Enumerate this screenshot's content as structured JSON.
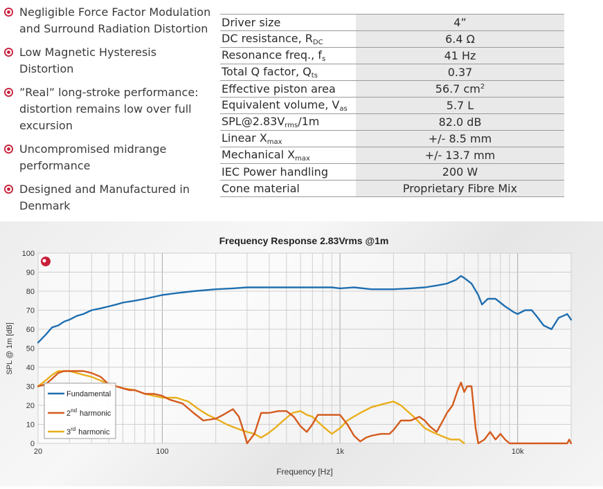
{
  "features": [
    "Negligible Force Factor Modulation and Surround Radiation Distortion",
    "Low Magnetic Hysteresis Distortion",
    "”Real” long-stroke performance: distortion remains low over full excursion",
    "Uncompromised midrange performance",
    "Designed and Manufactured in Denmark"
  ],
  "specs": {
    "r0": {
      "label": "Driver size",
      "value": "4”"
    },
    "r1": {
      "label": "DC resistance, R",
      "sub": "DC",
      "value": "6.4 Ω"
    },
    "r2": {
      "label": "Resonance freq., f",
      "sub": "s",
      "value": "41 Hz"
    },
    "r3": {
      "label": "Total Q factor, Q",
      "sub": "ts",
      "value": "0.37"
    },
    "r4": {
      "label": "Effective piston area",
      "value": "56.7 cm",
      "value_sup": "2"
    },
    "r5": {
      "label": "Equivalent volume, V",
      "sub": "as",
      "value": "5.7 L"
    },
    "r6": {
      "label": "SPL@2.83V",
      "sub": "rms",
      "label_tail": "/1m",
      "value": "82.0 dB"
    },
    "r7": {
      "label": "Linear X",
      "sub": "max",
      "value": "+/- 8.5 mm"
    },
    "r8": {
      "label": "Mechanical X",
      "sub": "max",
      "value": "+/- 13.7 mm"
    },
    "r9": {
      "label": "IEC Power handling",
      "value": "200 W"
    },
    "r10": {
      "label": "Cone material",
      "value": "Proprietary Fibre Mix"
    }
  },
  "colors": {
    "fundamental": "#1f6fb0",
    "h2": "#d45a1c",
    "h3": "#e9ae1c",
    "bullet": "#c81f3a",
    "grid": "#cfcfcf"
  },
  "chart_data": {
    "type": "line",
    "title": "Frequency Response 2.83Vrms @1m",
    "xlabel": "Frequency [Hz]",
    "ylabel": "SPL @ 1m [dB]",
    "xscale": "log",
    "xlim": [
      20,
      20000
    ],
    "ylim": [
      0,
      100
    ],
    "x_ticks": [
      "20",
      "100",
      "1k",
      "10k"
    ],
    "y_ticks": [
      "0",
      "10",
      "20",
      "30",
      "40",
      "50",
      "60",
      "70",
      "80",
      "90",
      "100"
    ],
    "legend": {
      "placement": "bottom-left",
      "labels": {
        "fundamental": "Fundamental",
        "h2_num": "2",
        "h2_sup": "nd",
        "h2_word": "harmonic",
        "h3_num": "3",
        "h3_sup": "rd",
        "h3_word": "harmonic"
      }
    },
    "grid": true,
    "series": [
      {
        "name": "Fundamental",
        "color": "#1f6fb0",
        "points": [
          [
            20,
            53
          ],
          [
            22,
            57
          ],
          [
            24,
            61
          ],
          [
            26,
            62
          ],
          [
            28,
            64
          ],
          [
            30,
            65
          ],
          [
            33,
            67
          ],
          [
            36,
            68
          ],
          [
            40,
            70
          ],
          [
            45,
            71
          ],
          [
            50,
            72
          ],
          [
            55,
            73
          ],
          [
            60,
            74
          ],
          [
            70,
            75
          ],
          [
            80,
            76
          ],
          [
            100,
            78
          ],
          [
            120,
            79
          ],
          [
            150,
            80
          ],
          [
            200,
            81
          ],
          [
            250,
            81.5
          ],
          [
            300,
            82
          ],
          [
            350,
            82
          ],
          [
            400,
            82
          ],
          [
            500,
            82
          ],
          [
            600,
            82
          ],
          [
            700,
            82
          ],
          [
            800,
            82
          ],
          [
            900,
            82
          ],
          [
            1000,
            81.5
          ],
          [
            1200,
            82
          ],
          [
            1500,
            81
          ],
          [
            1700,
            81
          ],
          [
            2000,
            81
          ],
          [
            2500,
            81.5
          ],
          [
            3000,
            82
          ],
          [
            3500,
            83
          ],
          [
            4000,
            84
          ],
          [
            4500,
            86
          ],
          [
            4800,
            88
          ],
          [
            5000,
            87
          ],
          [
            5500,
            84
          ],
          [
            6000,
            78
          ],
          [
            6300,
            73
          ],
          [
            6800,
            76
          ],
          [
            7500,
            76
          ],
          [
            8500,
            72
          ],
          [
            9500,
            69
          ],
          [
            10000,
            68
          ],
          [
            11000,
            70
          ],
          [
            12000,
            70
          ],
          [
            13000,
            66
          ],
          [
            14000,
            62
          ],
          [
            15500,
            60
          ],
          [
            17000,
            66
          ],
          [
            18000,
            67
          ],
          [
            19000,
            68
          ],
          [
            20000,
            65
          ]
        ]
      },
      {
        "name": "2nd harmonic",
        "color": "#d45a1c",
        "points": [
          [
            20,
            30
          ],
          [
            22,
            31
          ],
          [
            24,
            34
          ],
          [
            26,
            37
          ],
          [
            28,
            38
          ],
          [
            30,
            38
          ],
          [
            33,
            38
          ],
          [
            36,
            38
          ],
          [
            40,
            37
          ],
          [
            45,
            35
          ],
          [
            50,
            31
          ],
          [
            55,
            30
          ],
          [
            60,
            29
          ],
          [
            65,
            28
          ],
          [
            70,
            28
          ],
          [
            80,
            26
          ],
          [
            90,
            26
          ],
          [
            100,
            25
          ],
          [
            110,
            23
          ],
          [
            130,
            21
          ],
          [
            150,
            16
          ],
          [
            170,
            12
          ],
          [
            200,
            13
          ],
          [
            220,
            15
          ],
          [
            250,
            18
          ],
          [
            270,
            14
          ],
          [
            290,
            5
          ],
          [
            300,
            0
          ],
          [
            330,
            5
          ],
          [
            360,
            16
          ],
          [
            400,
            16
          ],
          [
            450,
            17
          ],
          [
            500,
            17
          ],
          [
            550,
            14
          ],
          [
            600,
            9
          ],
          [
            650,
            6
          ],
          [
            700,
            10
          ],
          [
            750,
            15
          ],
          [
            800,
            15
          ],
          [
            900,
            15
          ],
          [
            1000,
            15
          ],
          [
            1100,
            10
          ],
          [
            1200,
            4
          ],
          [
            1300,
            1
          ],
          [
            1400,
            3
          ],
          [
            1500,
            4
          ],
          [
            1700,
            5
          ],
          [
            1900,
            5
          ],
          [
            2000,
            7
          ],
          [
            2200,
            12
          ],
          [
            2500,
            12
          ],
          [
            2800,
            14
          ],
          [
            3000,
            12
          ],
          [
            3200,
            9
          ],
          [
            3500,
            6
          ],
          [
            3800,
            12
          ],
          [
            4000,
            16
          ],
          [
            4300,
            20
          ],
          [
            4600,
            28
          ],
          [
            4800,
            32
          ],
          [
            5000,
            27
          ],
          [
            5200,
            30
          ],
          [
            5500,
            30
          ],
          [
            5800,
            8
          ],
          [
            6000,
            0
          ],
          [
            6500,
            2
          ],
          [
            7000,
            6
          ],
          [
            7500,
            2
          ],
          [
            8000,
            5
          ],
          [
            8500,
            2
          ],
          [
            9000,
            0
          ],
          [
            19000,
            0
          ],
          [
            19500,
            2
          ],
          [
            20000,
            0
          ]
        ]
      },
      {
        "name": "3rd harmonic",
        "color": "#e9ae1c",
        "points": [
          [
            20,
            30
          ],
          [
            22,
            33
          ],
          [
            24,
            36
          ],
          [
            26,
            38
          ],
          [
            28,
            38
          ],
          [
            30,
            38
          ],
          [
            33,
            37
          ],
          [
            36,
            36
          ],
          [
            40,
            35
          ],
          [
            45,
            33
          ],
          [
            50,
            31
          ],
          [
            55,
            30
          ],
          [
            60,
            29
          ],
          [
            70,
            28
          ],
          [
            80,
            26
          ],
          [
            100,
            24
          ],
          [
            120,
            24
          ],
          [
            140,
            22
          ],
          [
            160,
            18
          ],
          [
            180,
            15
          ],
          [
            200,
            13
          ],
          [
            230,
            10
          ],
          [
            260,
            8
          ],
          [
            300,
            6
          ],
          [
            330,
            5
          ],
          [
            360,
            3
          ],
          [
            390,
            5
          ],
          [
            430,
            8
          ],
          [
            480,
            12
          ],
          [
            540,
            16
          ],
          [
            600,
            17
          ],
          [
            650,
            15
          ],
          [
            700,
            14
          ],
          [
            800,
            9
          ],
          [
            900,
            5
          ],
          [
            1000,
            8
          ],
          [
            1100,
            12
          ],
          [
            1300,
            16
          ],
          [
            1500,
            19
          ],
          [
            1800,
            21
          ],
          [
            2000,
            22
          ],
          [
            2200,
            20
          ],
          [
            2600,
            14
          ],
          [
            3000,
            8
          ],
          [
            3300,
            6
          ],
          [
            3700,
            4
          ],
          [
            4200,
            2
          ],
          [
            4700,
            2
          ],
          [
            5000,
            0
          ]
        ]
      }
    ]
  }
}
